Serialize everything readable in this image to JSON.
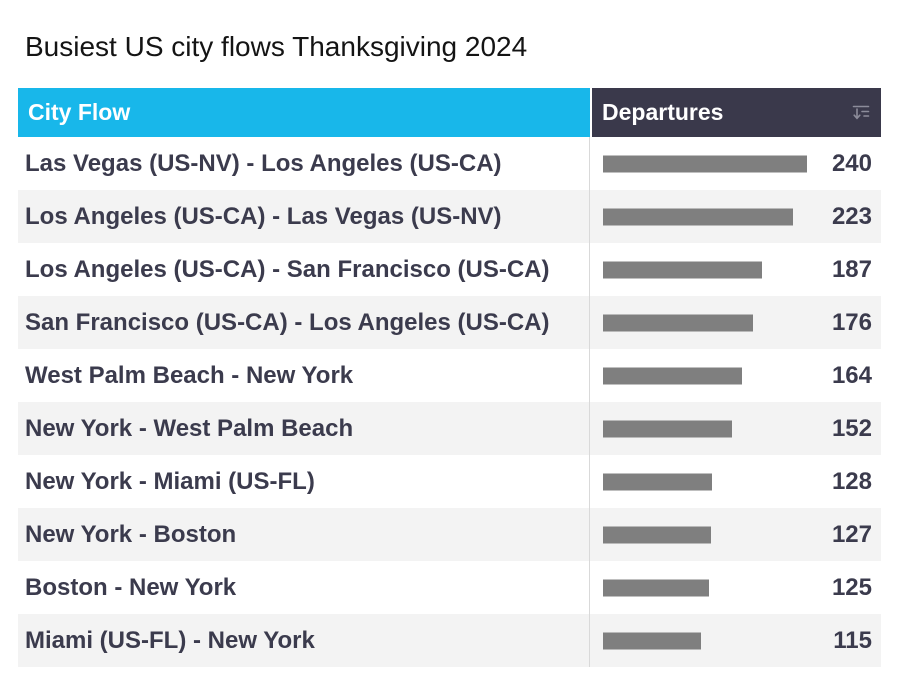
{
  "title": "Busiest US city flows Thanksgiving 2024",
  "table": {
    "columns": [
      {
        "label": "City Flow"
      },
      {
        "label": "Departures",
        "icon": "sort-descending-icon"
      }
    ],
    "rows": [
      {
        "flow": "Las Vegas (US-NV) - Los Angeles (US-CA)",
        "departures": 240
      },
      {
        "flow": "Los Angeles (US-CA) - Las Vegas (US-NV)",
        "departures": 223
      },
      {
        "flow": "Los Angeles (US-CA) - San Francisco (US-CA)",
        "departures": 187
      },
      {
        "flow": "San Francisco (US-CA) - Los Angeles (US-CA)",
        "departures": 176
      },
      {
        "flow": "West Palm Beach - New York",
        "departures": 164
      },
      {
        "flow": "New York - West Palm Beach",
        "departures": 152
      },
      {
        "flow": "New York - Miami (US-FL)",
        "departures": 128
      },
      {
        "flow": "New York - Boston",
        "departures": 127
      },
      {
        "flow": "Boston - New York",
        "departures": 125
      },
      {
        "flow": "Miami (US-FL) - New York",
        "departures": 115
      }
    ],
    "sort": "Departures descending"
  },
  "colors": {
    "header_city_flow_bg": "#18B7EA",
    "header_departures_bg": "#3A394B",
    "header_text": "#FFFFFF",
    "row_text": "#3B3B4D",
    "bar": "#7F7F7F",
    "alt_row_bg": "#F3F3F3",
    "column_divider": "#D9D9D9"
  },
  "chart_data": {
    "type": "table",
    "title": "Busiest US city flows Thanksgiving 2024",
    "columns": [
      "City Flow",
      "Departures"
    ],
    "categories": [
      "Las Vegas (US-NV) - Los Angeles (US-CA)",
      "Los Angeles (US-CA) - Las Vegas (US-NV)",
      "Los Angeles (US-CA) - San Francisco (US-CA)",
      "San Francisco (US-CA) - Los Angeles (US-CA)",
      "West Palm Beach - New York",
      "New York - West Palm Beach",
      "New York - Miami (US-FL)",
      "New York - Boston",
      "Boston - New York",
      "Miami (US-FL) - New York"
    ],
    "values": [
      240,
      223,
      187,
      176,
      164,
      152,
      128,
      127,
      125,
      115
    ],
    "max_value": 240,
    "bar_color": "#7F7F7F",
    "sort": "Departures descending",
    "legend": "off",
    "grid": "off"
  }
}
